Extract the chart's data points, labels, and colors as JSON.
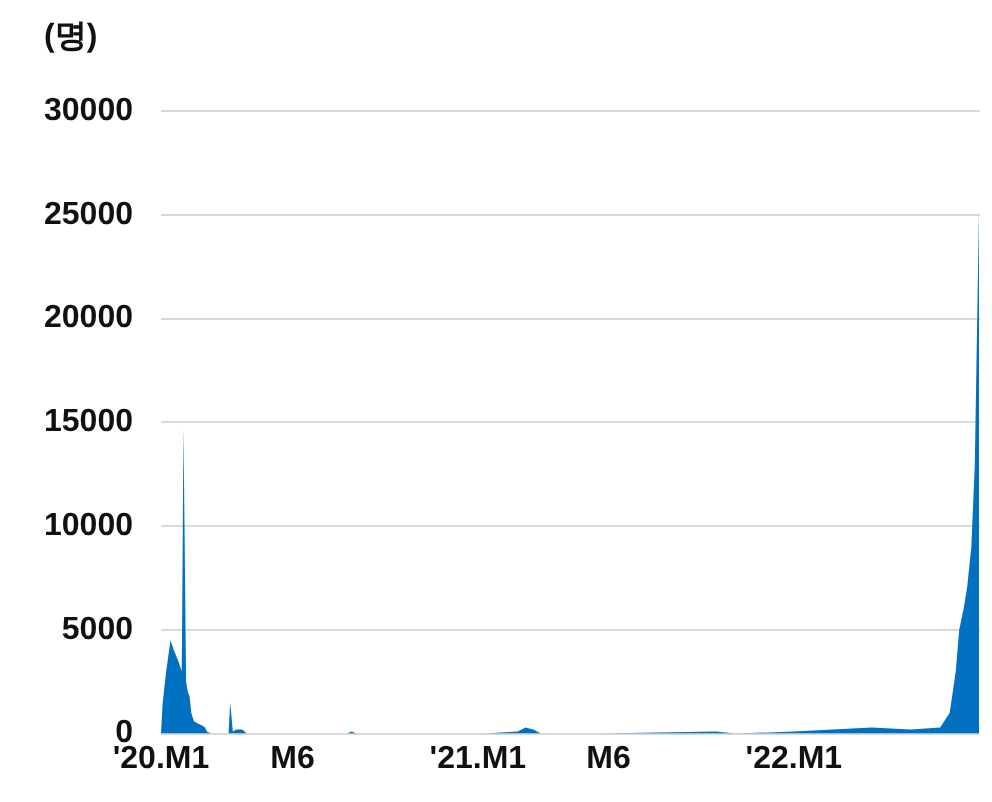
{
  "chart_data": {
    "type": "area",
    "ylabel": "(명)",
    "x": [
      "2020-01-01",
      "2020-01-03",
      "2020-01-07",
      "2020-01-12",
      "2020-01-16",
      "2020-01-21",
      "2020-01-25",
      "2020-01-27",
      "2020-01-30",
      "2020-02-01",
      "2020-02-03",
      "2020-02-05",
      "2020-02-08",
      "2020-02-12",
      "2020-02-17",
      "2020-02-21",
      "2020-02-23",
      "2020-02-28",
      "2020-03-10",
      "2020-03-19",
      "2020-03-21",
      "2020-03-24",
      "2020-03-28",
      "2020-04-04",
      "2020-04-09",
      "2020-04-24",
      "2020-06-19",
      "2020-08-03",
      "2020-08-08",
      "2020-08-14",
      "2020-10-09",
      "2020-11-23",
      "2021-01-07",
      "2021-02-16",
      "2021-02-25",
      "2021-03-06",
      "2021-03-15",
      "2021-05-22",
      "2021-10-03",
      "2021-10-26",
      "2022-01-01",
      "2022-02-15",
      "2022-04-01",
      "2022-05-16",
      "2022-06-19",
      "2022-06-30",
      "2022-07-07",
      "2022-07-11",
      "2022-07-16",
      "2022-07-20",
      "2022-07-25",
      "2022-07-29",
      "2022-08-03"
    ],
    "series": [
      {
        "color": "#0070c0",
        "values": [
          0,
          1500,
          3000,
          4500,
          4000,
          3500,
          3000,
          14800,
          2500,
          2000,
          1800,
          1000,
          600,
          500,
          400,
          300,
          100,
          0,
          0,
          0,
          1500,
          100,
          200,
          200,
          0,
          0,
          0,
          0,
          100,
          0,
          0,
          0,
          0,
          100,
          300,
          200,
          0,
          0,
          100,
          0,
          100,
          200,
          300,
          200,
          300,
          1000,
          3000,
          5000,
          6000,
          7000,
          9000,
          13000,
          25600
        ]
      }
    ],
    "xlim": [
      "2020-01-01",
      "2022-08-04"
    ],
    "xticks": [
      {
        "value": "2020-01-01",
        "label": "'20.M1"
      },
      {
        "value": "2020-06-01",
        "label": "M6"
      },
      {
        "value": "2021-01-01",
        "label": "'21.M1"
      },
      {
        "value": "2021-06-01",
        "label": "M6"
      },
      {
        "value": "2022-01-01",
        "label": "'22.M1"
      }
    ],
    "ylim": [
      0,
      30000
    ],
    "yticks": [
      0,
      5000,
      10000,
      15000,
      20000,
      25000,
      30000
    ],
    "grid": "y",
    "legend": false
  }
}
